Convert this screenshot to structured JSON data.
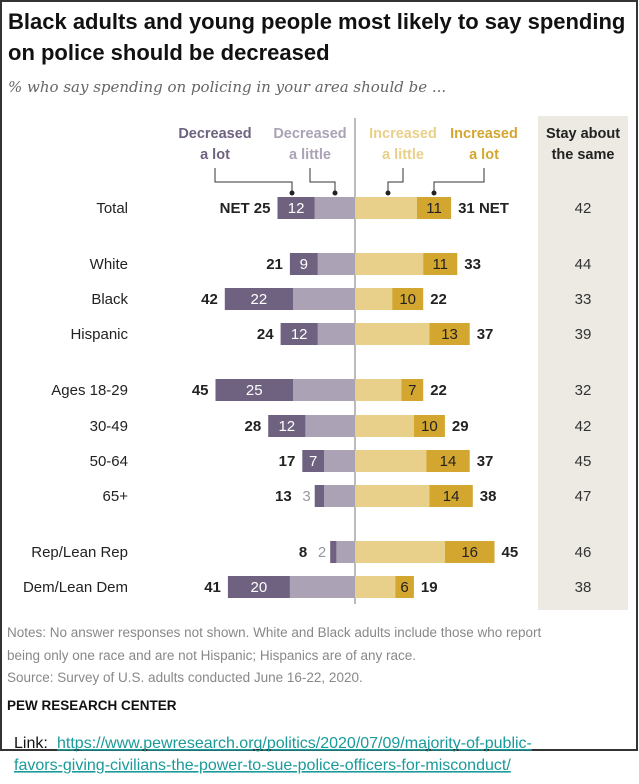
{
  "chart_data": {
    "type": "bar",
    "title": "Black adults and young people most likely to say spending on police should be decreased",
    "subtitle": "% who say spending on policing in your area should be ...",
    "headers": {
      "dec_lot": [
        "Decreased",
        "a lot"
      ],
      "dec_little": [
        "Decreased",
        "a little"
      ],
      "inc_little": [
        "Increased",
        "a little"
      ],
      "inc_lot": [
        "Increased",
        "a lot"
      ],
      "stay": [
        "Stay about",
        "the same"
      ]
    },
    "net_label": "NET",
    "categories": [
      "Total",
      "White",
      "Black",
      "Hispanic",
      "Ages 18-29",
      "30-49",
      "50-64",
      "65+",
      "Rep/Lean Rep",
      "Dem/Lean Dem"
    ],
    "decreased_net": [
      25,
      21,
      42,
      24,
      45,
      28,
      17,
      13,
      8,
      41
    ],
    "decreased_a_lot": [
      12,
      9,
      22,
      12,
      25,
      12,
      7,
      3,
      2,
      20
    ],
    "increased_net": [
      31,
      33,
      22,
      37,
      22,
      29,
      37,
      38,
      45,
      19
    ],
    "increased_a_lot": [
      11,
      11,
      10,
      13,
      7,
      10,
      14,
      14,
      16,
      6
    ],
    "stay_about_same": [
      42,
      44,
      33,
      39,
      32,
      42,
      45,
      47,
      46,
      38
    ],
    "colors": {
      "dec_lot": "#6e6280",
      "dec_little": "#aba2b5",
      "inc_little": "#e9d08a",
      "inc_lot": "#d3a630",
      "stay_bg": "#eceae2"
    },
    "notes": [
      "Notes: No answer responses not shown. White and Black adults include those who report",
      "being only one race and are not Hispanic; Hispanics are of any race.",
      "Source: Survey of U.S. adults conducted June 16-22, 2020."
    ],
    "source_brand": "PEW RESEARCH CENTER"
  },
  "link": {
    "label": "Link:",
    "url_line1": "https://www.pewresearch.org/politics/2020/07/09/majority-of-public-",
    "url_line2": "favors-giving-civilians-the-power-to-sue-police-officers-for-misconduct/"
  }
}
